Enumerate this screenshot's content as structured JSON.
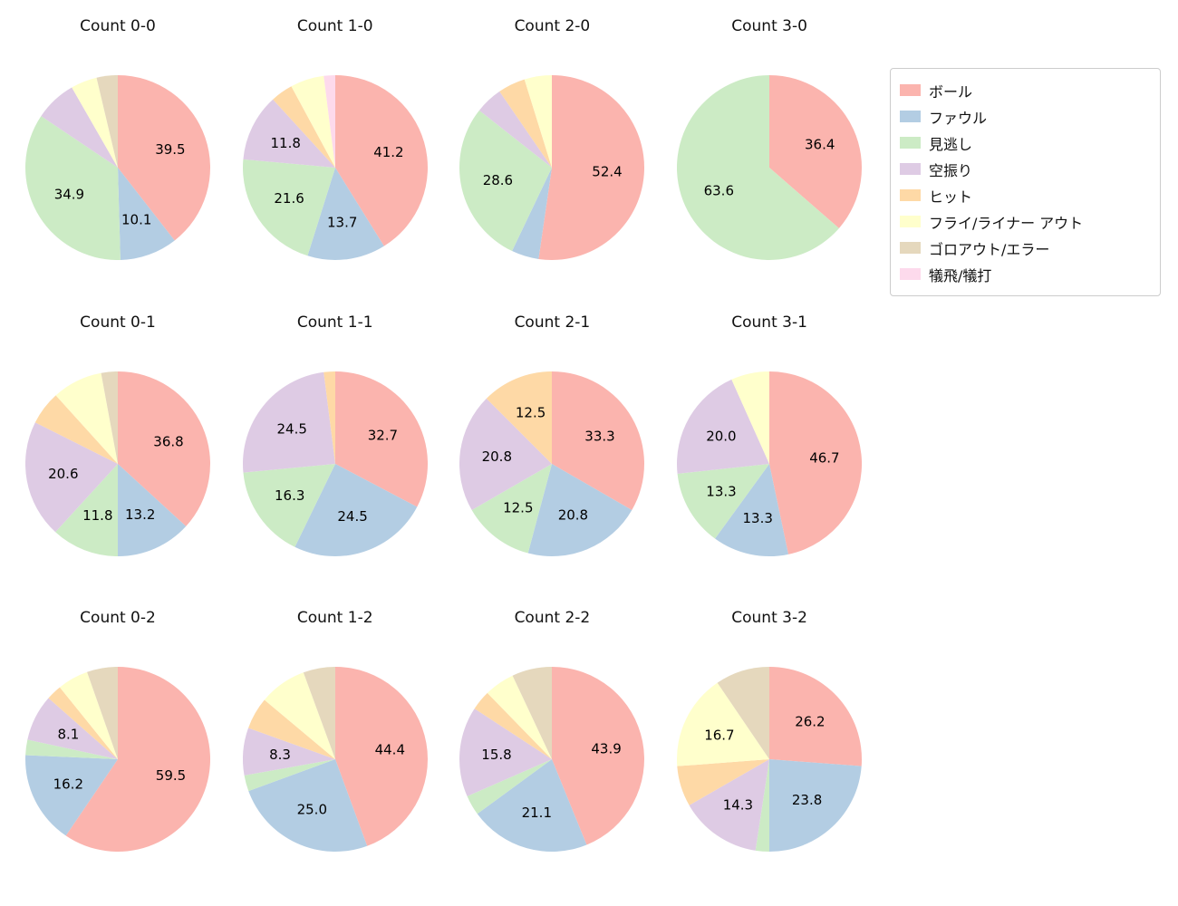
{
  "legend": {
    "items": [
      {
        "label": "ボール",
        "color": "#fbb4ae"
      },
      {
        "label": "ファウル",
        "color": "#b3cde3"
      },
      {
        "label": "見逃し",
        "color": "#ccebc5"
      },
      {
        "label": "空振り",
        "color": "#decbe4"
      },
      {
        "label": "ヒット",
        "color": "#fed9a6"
      },
      {
        "label": "フライ/ライナー アウト",
        "color": "#ffffcc"
      },
      {
        "label": "ゴロアウト/エラー",
        "color": "#e5d8bd"
      },
      {
        "label": "犠飛/犠打",
        "color": "#fddaec"
      }
    ]
  },
  "chart_data": [
    {
      "type": "pie",
      "title": "Count 0-0",
      "unit": "percent",
      "slices": [
        {
          "category": "ボール",
          "value": 39.5,
          "label": "39.5"
        },
        {
          "category": "ファウル",
          "value": 10.1,
          "label": "10.1"
        },
        {
          "category": "見逃し",
          "value": 34.9,
          "label": "34.9"
        },
        {
          "category": "空振り",
          "value": 7.3,
          "label": ""
        },
        {
          "category": "フライ/ライナー アウト",
          "value": 4.6,
          "label": ""
        },
        {
          "category": "ゴロアウト/エラー",
          "value": 3.7,
          "label": ""
        }
      ]
    },
    {
      "type": "pie",
      "title": "Count 1-0",
      "unit": "percent",
      "slices": [
        {
          "category": "ボール",
          "value": 41.2,
          "label": "41.2"
        },
        {
          "category": "ファウル",
          "value": 13.7,
          "label": "13.7"
        },
        {
          "category": "見逃し",
          "value": 21.6,
          "label": "21.6"
        },
        {
          "category": "空振り",
          "value": 11.8,
          "label": "11.8"
        },
        {
          "category": "ヒット",
          "value": 3.9,
          "label": ""
        },
        {
          "category": "フライ/ライナー アウト",
          "value": 5.9,
          "label": ""
        },
        {
          "category": "犠飛/犠打",
          "value": 2.0,
          "label": ""
        }
      ]
    },
    {
      "type": "pie",
      "title": "Count 2-0",
      "unit": "percent",
      "slices": [
        {
          "category": "ボール",
          "value": 52.4,
          "label": "52.4"
        },
        {
          "category": "ファウル",
          "value": 4.8,
          "label": ""
        },
        {
          "category": "見逃し",
          "value": 28.6,
          "label": "28.6"
        },
        {
          "category": "空振り",
          "value": 4.8,
          "label": ""
        },
        {
          "category": "ヒット",
          "value": 4.8,
          "label": ""
        },
        {
          "category": "フライ/ライナー アウト",
          "value": 4.8,
          "label": ""
        }
      ]
    },
    {
      "type": "pie",
      "title": "Count 3-0",
      "unit": "percent",
      "slices": [
        {
          "category": "ボール",
          "value": 36.4,
          "label": "36.4"
        },
        {
          "category": "見逃し",
          "value": 63.6,
          "label": "63.6"
        }
      ]
    },
    {
      "type": "pie",
      "title": "Count 0-1",
      "unit": "percent",
      "slices": [
        {
          "category": "ボール",
          "value": 36.8,
          "label": "36.8"
        },
        {
          "category": "ファウル",
          "value": 13.2,
          "label": "13.2"
        },
        {
          "category": "見逃し",
          "value": 11.8,
          "label": "11.8"
        },
        {
          "category": "空振り",
          "value": 20.6,
          "label": "20.6"
        },
        {
          "category": "ヒット",
          "value": 5.9,
          "label": ""
        },
        {
          "category": "フライ/ライナー アウト",
          "value": 8.8,
          "label": ""
        },
        {
          "category": "ゴロアウト/エラー",
          "value": 2.9,
          "label": ""
        }
      ]
    },
    {
      "type": "pie",
      "title": "Count 1-1",
      "unit": "percent",
      "slices": [
        {
          "category": "ボール",
          "value": 32.7,
          "label": "32.7"
        },
        {
          "category": "ファウル",
          "value": 24.5,
          "label": "24.5"
        },
        {
          "category": "見逃し",
          "value": 16.3,
          "label": "16.3"
        },
        {
          "category": "空振り",
          "value": 24.5,
          "label": "24.5"
        },
        {
          "category": "ヒット",
          "value": 2.0,
          "label": ""
        }
      ]
    },
    {
      "type": "pie",
      "title": "Count 2-1",
      "unit": "percent",
      "slices": [
        {
          "category": "ボール",
          "value": 33.3,
          "label": "33.3"
        },
        {
          "category": "ファウル",
          "value": 20.8,
          "label": "20.8"
        },
        {
          "category": "見逃し",
          "value": 12.5,
          "label": "12.5"
        },
        {
          "category": "空振り",
          "value": 20.8,
          "label": "20.8"
        },
        {
          "category": "ヒット",
          "value": 12.5,
          "label": "12.5"
        }
      ]
    },
    {
      "type": "pie",
      "title": "Count 3-1",
      "unit": "percent",
      "slices": [
        {
          "category": "ボール",
          "value": 46.7,
          "label": "46.7"
        },
        {
          "category": "ファウル",
          "value": 13.3,
          "label": "13.3"
        },
        {
          "category": "見逃し",
          "value": 13.3,
          "label": "13.3"
        },
        {
          "category": "空振り",
          "value": 20.0,
          "label": "20.0"
        },
        {
          "category": "フライ/ライナー アウト",
          "value": 6.7,
          "label": ""
        }
      ]
    },
    {
      "type": "pie",
      "title": "Count 0-2",
      "unit": "percent",
      "slices": [
        {
          "category": "ボール",
          "value": 59.5,
          "label": "59.5"
        },
        {
          "category": "ファウル",
          "value": 16.2,
          "label": "16.2"
        },
        {
          "category": "見逃し",
          "value": 2.7,
          "label": ""
        },
        {
          "category": "空振り",
          "value": 8.1,
          "label": "8.1"
        },
        {
          "category": "ヒット",
          "value": 2.7,
          "label": ""
        },
        {
          "category": "フライ/ライナー アウト",
          "value": 5.4,
          "label": ""
        },
        {
          "category": "ゴロアウト/エラー",
          "value": 5.4,
          "label": ""
        }
      ]
    },
    {
      "type": "pie",
      "title": "Count 1-2",
      "unit": "percent",
      "slices": [
        {
          "category": "ボール",
          "value": 44.4,
          "label": "44.4"
        },
        {
          "category": "ファウル",
          "value": 25.0,
          "label": "25.0"
        },
        {
          "category": "見逃し",
          "value": 2.8,
          "label": ""
        },
        {
          "category": "空振り",
          "value": 8.3,
          "label": "8.3"
        },
        {
          "category": "ヒット",
          "value": 5.6,
          "label": ""
        },
        {
          "category": "フライ/ライナー アウト",
          "value": 8.3,
          "label": ""
        },
        {
          "category": "ゴロアウト/エラー",
          "value": 5.6,
          "label": ""
        }
      ]
    },
    {
      "type": "pie",
      "title": "Count 2-2",
      "unit": "percent",
      "slices": [
        {
          "category": "ボール",
          "value": 43.9,
          "label": "43.9"
        },
        {
          "category": "ファウル",
          "value": 21.1,
          "label": "21.1"
        },
        {
          "category": "見逃し",
          "value": 3.5,
          "label": ""
        },
        {
          "category": "空振り",
          "value": 15.8,
          "label": "15.8"
        },
        {
          "category": "ヒット",
          "value": 3.5,
          "label": ""
        },
        {
          "category": "フライ/ライナー アウト",
          "value": 5.3,
          "label": ""
        },
        {
          "category": "ゴロアウト/エラー",
          "value": 7.0,
          "label": ""
        }
      ]
    },
    {
      "type": "pie",
      "title": "Count 3-2",
      "unit": "percent",
      "slices": [
        {
          "category": "ボール",
          "value": 26.2,
          "label": "26.2"
        },
        {
          "category": "ファウル",
          "value": 23.8,
          "label": "23.8"
        },
        {
          "category": "見逃し",
          "value": 2.4,
          "label": ""
        },
        {
          "category": "空振り",
          "value": 14.3,
          "label": "14.3"
        },
        {
          "category": "ヒット",
          "value": 7.1,
          "label": ""
        },
        {
          "category": "フライ/ライナー アウト",
          "value": 16.7,
          "label": "16.7"
        },
        {
          "category": "ゴロアウト/エラー",
          "value": 9.5,
          "label": ""
        }
      ]
    }
  ]
}
